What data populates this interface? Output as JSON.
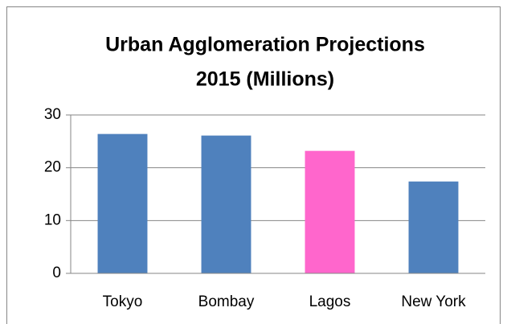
{
  "chart_data": {
    "type": "bar",
    "title": [
      "Urban Agglomeration Projections",
      "2015 (Millions)"
    ],
    "categories": [
      "Tokyo",
      "Bombay",
      "Lagos",
      "New York"
    ],
    "values": [
      26.4,
      26.1,
      23.2,
      17.4
    ],
    "colors": [
      "#4f81bd",
      "#4f81bd",
      "#ff66cc",
      "#4f81bd"
    ],
    "ylim": [
      0,
      30
    ],
    "yticks": [
      0,
      10,
      20,
      30
    ],
    "grid": true
  }
}
